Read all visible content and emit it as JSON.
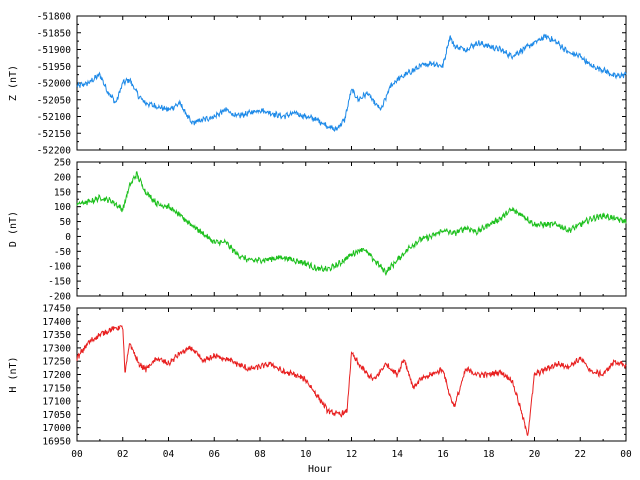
{
  "chart_data": [
    {
      "type": "line",
      "ylabel": "Z (nT)",
      "ylim": [
        -52200,
        -51800
      ],
      "yticks": [
        -51800,
        -51850,
        -51900,
        -51950,
        -52000,
        -52050,
        -52100,
        -52150,
        -52200
      ],
      "xlim": [
        0,
        24
      ],
      "color": "#1e8ae8",
      "x": [
        0,
        0.5,
        1,
        1.3,
        1.7,
        2,
        2.3,
        2.7,
        3,
        3.5,
        4,
        4.5,
        5,
        5.5,
        6,
        6.5,
        7,
        7.5,
        8,
        8.5,
        9,
        9.5,
        10,
        10.5,
        11,
        11.3,
        11.7,
        12,
        12.3,
        12.7,
        13,
        13.3,
        13.7,
        14,
        14.5,
        15,
        15.5,
        16,
        16.3,
        16.5,
        17,
        17.5,
        18,
        18.5,
        19,
        19.5,
        20,
        20.5,
        21,
        21.5,
        22,
        22.5,
        23,
        23.5,
        24
      ],
      "values": [
        -52010,
        -52000,
        -51975,
        -52020,
        -52060,
        -52000,
        -51990,
        -52040,
        -52060,
        -52070,
        -52080,
        -52060,
        -52120,
        -52110,
        -52100,
        -52080,
        -52100,
        -52090,
        -52080,
        -52090,
        -52100,
        -52090,
        -52100,
        -52110,
        -52130,
        -52140,
        -52110,
        -52020,
        -52050,
        -52030,
        -52060,
        -52080,
        -52010,
        -51990,
        -51970,
        -51950,
        -51940,
        -51950,
        -51860,
        -51890,
        -51900,
        -51880,
        -51890,
        -51900,
        -51920,
        -51900,
        -51880,
        -51860,
        -51880,
        -51910,
        -51920,
        -51950,
        -51960,
        -51980,
        -51975
      ]
    },
    {
      "type": "line",
      "ylabel": "D (nT)",
      "ylim": [
        -200,
        250
      ],
      "yticks": [
        250,
        200,
        150,
        100,
        50,
        0,
        -50,
        -100,
        -150,
        -200
      ],
      "xlim": [
        0,
        24
      ],
      "color": "#1ec01e",
      "x": [
        0,
        0.5,
        1,
        1.5,
        2,
        2.3,
        2.6,
        3,
        3.5,
        4,
        4.5,
        5,
        5.5,
        6,
        6.5,
        7,
        7.5,
        8,
        8.5,
        9,
        9.5,
        10,
        10.5,
        11,
        11.5,
        12,
        12.5,
        13,
        13.5,
        14,
        14.5,
        15,
        15.5,
        16,
        16.5,
        17,
        17.5,
        18,
        18.5,
        19,
        19.5,
        20,
        20.5,
        21,
        21.5,
        22,
        22.5,
        23,
        23.5,
        24
      ],
      "values": [
        110,
        115,
        130,
        120,
        90,
        170,
        210,
        150,
        110,
        100,
        70,
        40,
        10,
        -20,
        -20,
        -60,
        -80,
        -80,
        -75,
        -70,
        -80,
        -90,
        -110,
        -110,
        -90,
        -60,
        -40,
        -80,
        -120,
        -80,
        -40,
        -10,
        0,
        20,
        10,
        30,
        15,
        40,
        60,
        90,
        70,
        40,
        40,
        40,
        20,
        40,
        60,
        70,
        60,
        50
      ]
    },
    {
      "type": "line",
      "ylabel": "H (nT)",
      "xlabel": "Hour",
      "ylim": [
        16950,
        17450
      ],
      "yticks": [
        17450,
        17400,
        17350,
        17300,
        17250,
        17200,
        17150,
        17100,
        17050,
        17000,
        16950
      ],
      "xlim": [
        0,
        24
      ],
      "xticks": [
        "00",
        "02",
        "04",
        "06",
        "08",
        "10",
        "12",
        "14",
        "16",
        "18",
        "20",
        "22",
        "00"
      ],
      "color": "#e82020",
      "x": [
        0,
        0.5,
        1,
        1.5,
        2,
        2.1,
        2.3,
        2.7,
        3,
        3.5,
        4,
        4.5,
        5,
        5.5,
        6,
        6.5,
        7,
        7.5,
        8,
        8.5,
        9,
        9.5,
        10,
        10.5,
        11,
        11.5,
        11.8,
        12,
        12.3,
        12.7,
        13,
        13.5,
        14,
        14.3,
        14.7,
        15,
        15.5,
        16,
        16.3,
        16.5,
        17,
        17.5,
        18,
        18.5,
        19,
        19.3,
        19.7,
        20,
        20.5,
        21,
        21.5,
        22,
        22.5,
        23,
        23.5,
        24
      ],
      "values": [
        17260,
        17320,
        17350,
        17370,
        17380,
        17200,
        17320,
        17240,
        17220,
        17260,
        17240,
        17280,
        17300,
        17250,
        17270,
        17260,
        17240,
        17220,
        17230,
        17240,
        17210,
        17200,
        17180,
        17120,
        17060,
        17050,
        17060,
        17280,
        17240,
        17200,
        17180,
        17240,
        17200,
        17260,
        17150,
        17180,
        17200,
        17220,
        17120,
        17080,
        17220,
        17200,
        17200,
        17210,
        17180,
        17100,
        16970,
        17200,
        17220,
        17240,
        17230,
        17260,
        17210,
        17200,
        17250,
        17230
      ]
    }
  ]
}
